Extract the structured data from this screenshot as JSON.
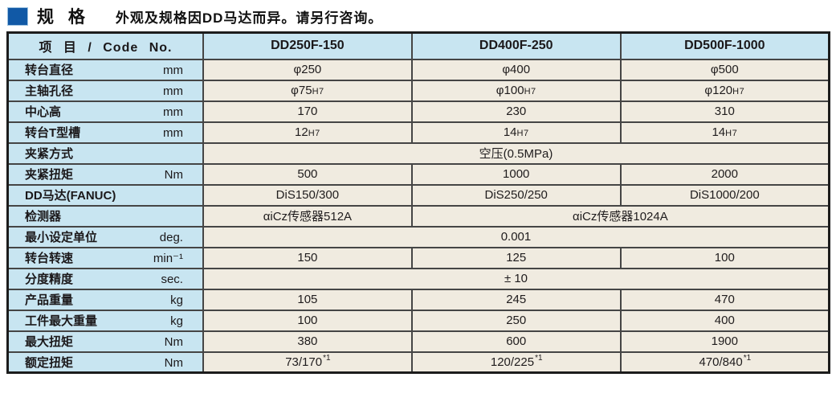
{
  "header": {
    "title": "规 格",
    "note": "外观及规格因DD马达而异。请另行咨询。",
    "bullet_color": "#1159a6"
  },
  "colors": {
    "header_fill": "#c8e5f1",
    "cell_fill": "#f0ebe0",
    "border": "#454545",
    "outer_border": "#1c1c1c",
    "accent_blue": "#1159a6"
  },
  "table": {
    "corner_label": "项 目 / Code No.",
    "columns": [
      "DD250F-150",
      "DD400F-250",
      "DD500F-1000"
    ],
    "rows": [
      {
        "item": "转台直径",
        "unit": "mm",
        "cells": [
          {
            "text": "φ250"
          },
          {
            "text": "φ400"
          },
          {
            "text": "φ500"
          }
        ]
      },
      {
        "item": "主轴孔径",
        "unit": "mm",
        "cells": [
          {
            "text": "φ75",
            "small": "H7"
          },
          {
            "text": "φ100",
            "small": "H7"
          },
          {
            "text": "φ120",
            "small": "H7"
          }
        ]
      },
      {
        "item": "中心高",
        "unit": "mm",
        "cells": [
          {
            "text": "170"
          },
          {
            "text": "230"
          },
          {
            "text": "310"
          }
        ]
      },
      {
        "item": "转台T型槽",
        "unit": "mm",
        "cells": [
          {
            "text": "12",
            "small": "H7"
          },
          {
            "text": "14",
            "small": "H7"
          },
          {
            "text": "14",
            "small": "H7"
          }
        ]
      },
      {
        "item": "夹紧方式",
        "unit": "",
        "cells": [
          {
            "text": "空压(0.5MPa)",
            "colspan": 3
          }
        ]
      },
      {
        "item": "夹紧扭矩",
        "unit": "Nm",
        "cells": [
          {
            "text": "500"
          },
          {
            "text": "1000"
          },
          {
            "text": "2000"
          }
        ]
      },
      {
        "item": "DD马达(FANUC)",
        "unit": "",
        "cells": [
          {
            "text": "DiS150/300"
          },
          {
            "text": "DiS250/250"
          },
          {
            "text": "DiS1000/200"
          }
        ]
      },
      {
        "item": "检测器",
        "unit": "",
        "cells": [
          {
            "text": "αiCz传感器512A"
          },
          {
            "text": "αiCz传感器1024A",
            "colspan": 2
          }
        ]
      },
      {
        "item": "最小设定单位",
        "unit": "deg.",
        "cells": [
          {
            "text": "0.001",
            "colspan": 3
          }
        ]
      },
      {
        "item": "转台转速",
        "unit": "min⁻¹",
        "cells": [
          {
            "text": "150"
          },
          {
            "text": "125"
          },
          {
            "text": "100"
          }
        ]
      },
      {
        "item": "分度精度",
        "unit": "sec.",
        "cells": [
          {
            "text": "± 10",
            "colspan": 3
          }
        ]
      },
      {
        "item": "产品重量",
        "unit": "kg",
        "cells": [
          {
            "text": "105"
          },
          {
            "text": "245"
          },
          {
            "text": "470"
          }
        ]
      },
      {
        "item": "工件最大重量",
        "unit": "kg",
        "cells": [
          {
            "text": "100"
          },
          {
            "text": "250"
          },
          {
            "text": "400"
          }
        ]
      },
      {
        "item": "最大扭矩",
        "unit": "Nm",
        "cells": [
          {
            "text": "380"
          },
          {
            "text": "600"
          },
          {
            "text": "1900"
          }
        ]
      },
      {
        "item": "额定扭矩",
        "unit": "Nm",
        "cells": [
          {
            "text": "73/170",
            "sup": "*1"
          },
          {
            "text": "120/225",
            "sup": "*1"
          },
          {
            "text": "470/840",
            "sup": "*1"
          }
        ]
      }
    ]
  }
}
